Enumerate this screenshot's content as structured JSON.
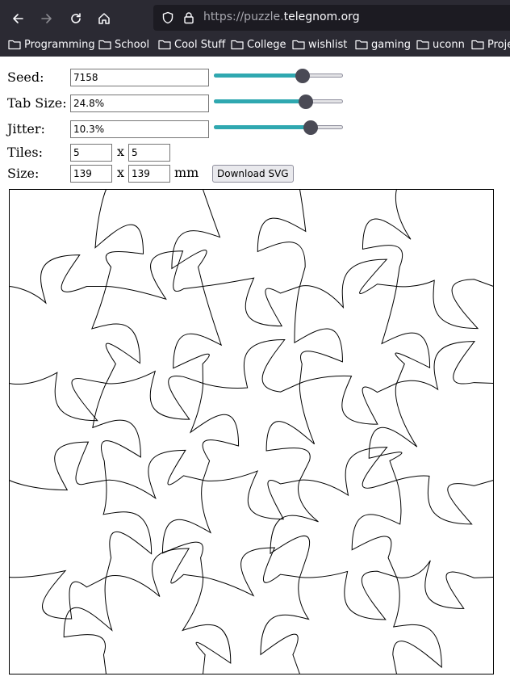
{
  "browser": {
    "url_prefix": "https://puzzle.",
    "url_host": "telegnom.org",
    "bookmarks": [
      "Programming",
      "School",
      "Cool Stuff",
      "College",
      "wishlist",
      "gaming",
      "uconn",
      "Proje"
    ]
  },
  "form": {
    "seed_label": "Seed:",
    "seed_value": "7158",
    "seed_slider": 0.69,
    "tabsize_label": "Tab Size:",
    "tabsize_value": "24.8%",
    "tabsize_slider": 0.71,
    "jitter_label": "Jitter:",
    "jitter_value": "10.3%",
    "jitter_slider": 0.75,
    "tiles_label": "Tiles:",
    "tiles_x": "5",
    "tiles_y": "5",
    "size_label": "Size:",
    "size_x": "139",
    "size_y": "139",
    "separator": "x",
    "unit": "mm",
    "download_label": "Download SVG"
  }
}
